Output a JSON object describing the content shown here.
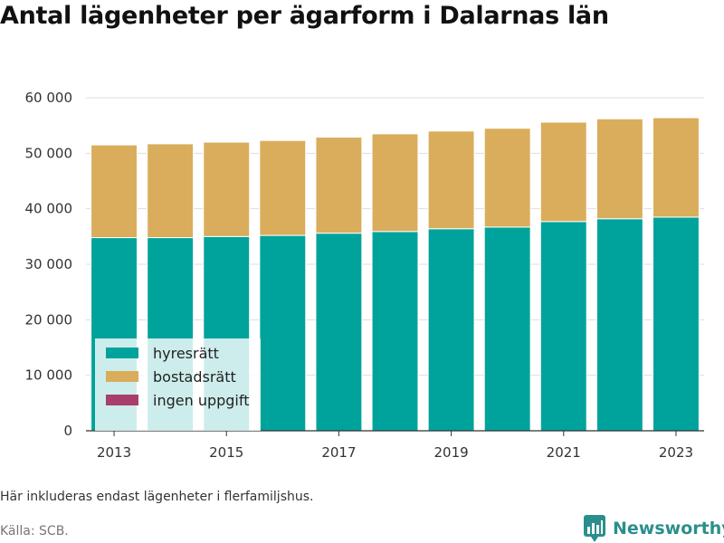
{
  "title": "Antal lägenheter per ägarform i Dalarnas län",
  "footnote": "Här inkluderas endast lägenheter i flerfamiljshus.",
  "source": "Källa: SCB.",
  "brand": {
    "name": "Newsworthy",
    "icon": "bar-chart-logo-icon",
    "color": "#2a8f8c"
  },
  "chart_data": {
    "type": "bar",
    "stacked": true,
    "categories": [
      2013,
      2014,
      2015,
      2016,
      2017,
      2018,
      2019,
      2020,
      2021,
      2022,
      2023
    ],
    "x_tick_labels": [
      "2013",
      "2015",
      "2017",
      "2019",
      "2021",
      "2023"
    ],
    "series": [
      {
        "name": "hyresrätt",
        "color": "#00a39b",
        "values": [
          34800,
          34800,
          35000,
          35200,
          35600,
          35900,
          36400,
          36700,
          37700,
          38200,
          38500
        ]
      },
      {
        "name": "bostadsrätt",
        "color": "#d9ad5b",
        "values": [
          16700,
          16900,
          17000,
          17100,
          17300,
          17600,
          17600,
          17800,
          17900,
          18000,
          17900
        ]
      },
      {
        "name": "ingen uppgift",
        "color": "#a83e6a",
        "values": [
          0,
          0,
          0,
          0,
          0,
          0,
          0,
          0,
          0,
          0,
          0
        ]
      }
    ],
    "ylim": [
      0,
      60000
    ],
    "y_ticks": [
      0,
      10000,
      20000,
      30000,
      40000,
      50000,
      60000
    ],
    "y_tick_labels": [
      "0",
      "10 000",
      "20 000",
      "30 000",
      "40 000",
      "50 000",
      "60 000"
    ],
    "xlabel": "",
    "ylabel": "",
    "grid": true,
    "legend_position": "bottom-left"
  }
}
